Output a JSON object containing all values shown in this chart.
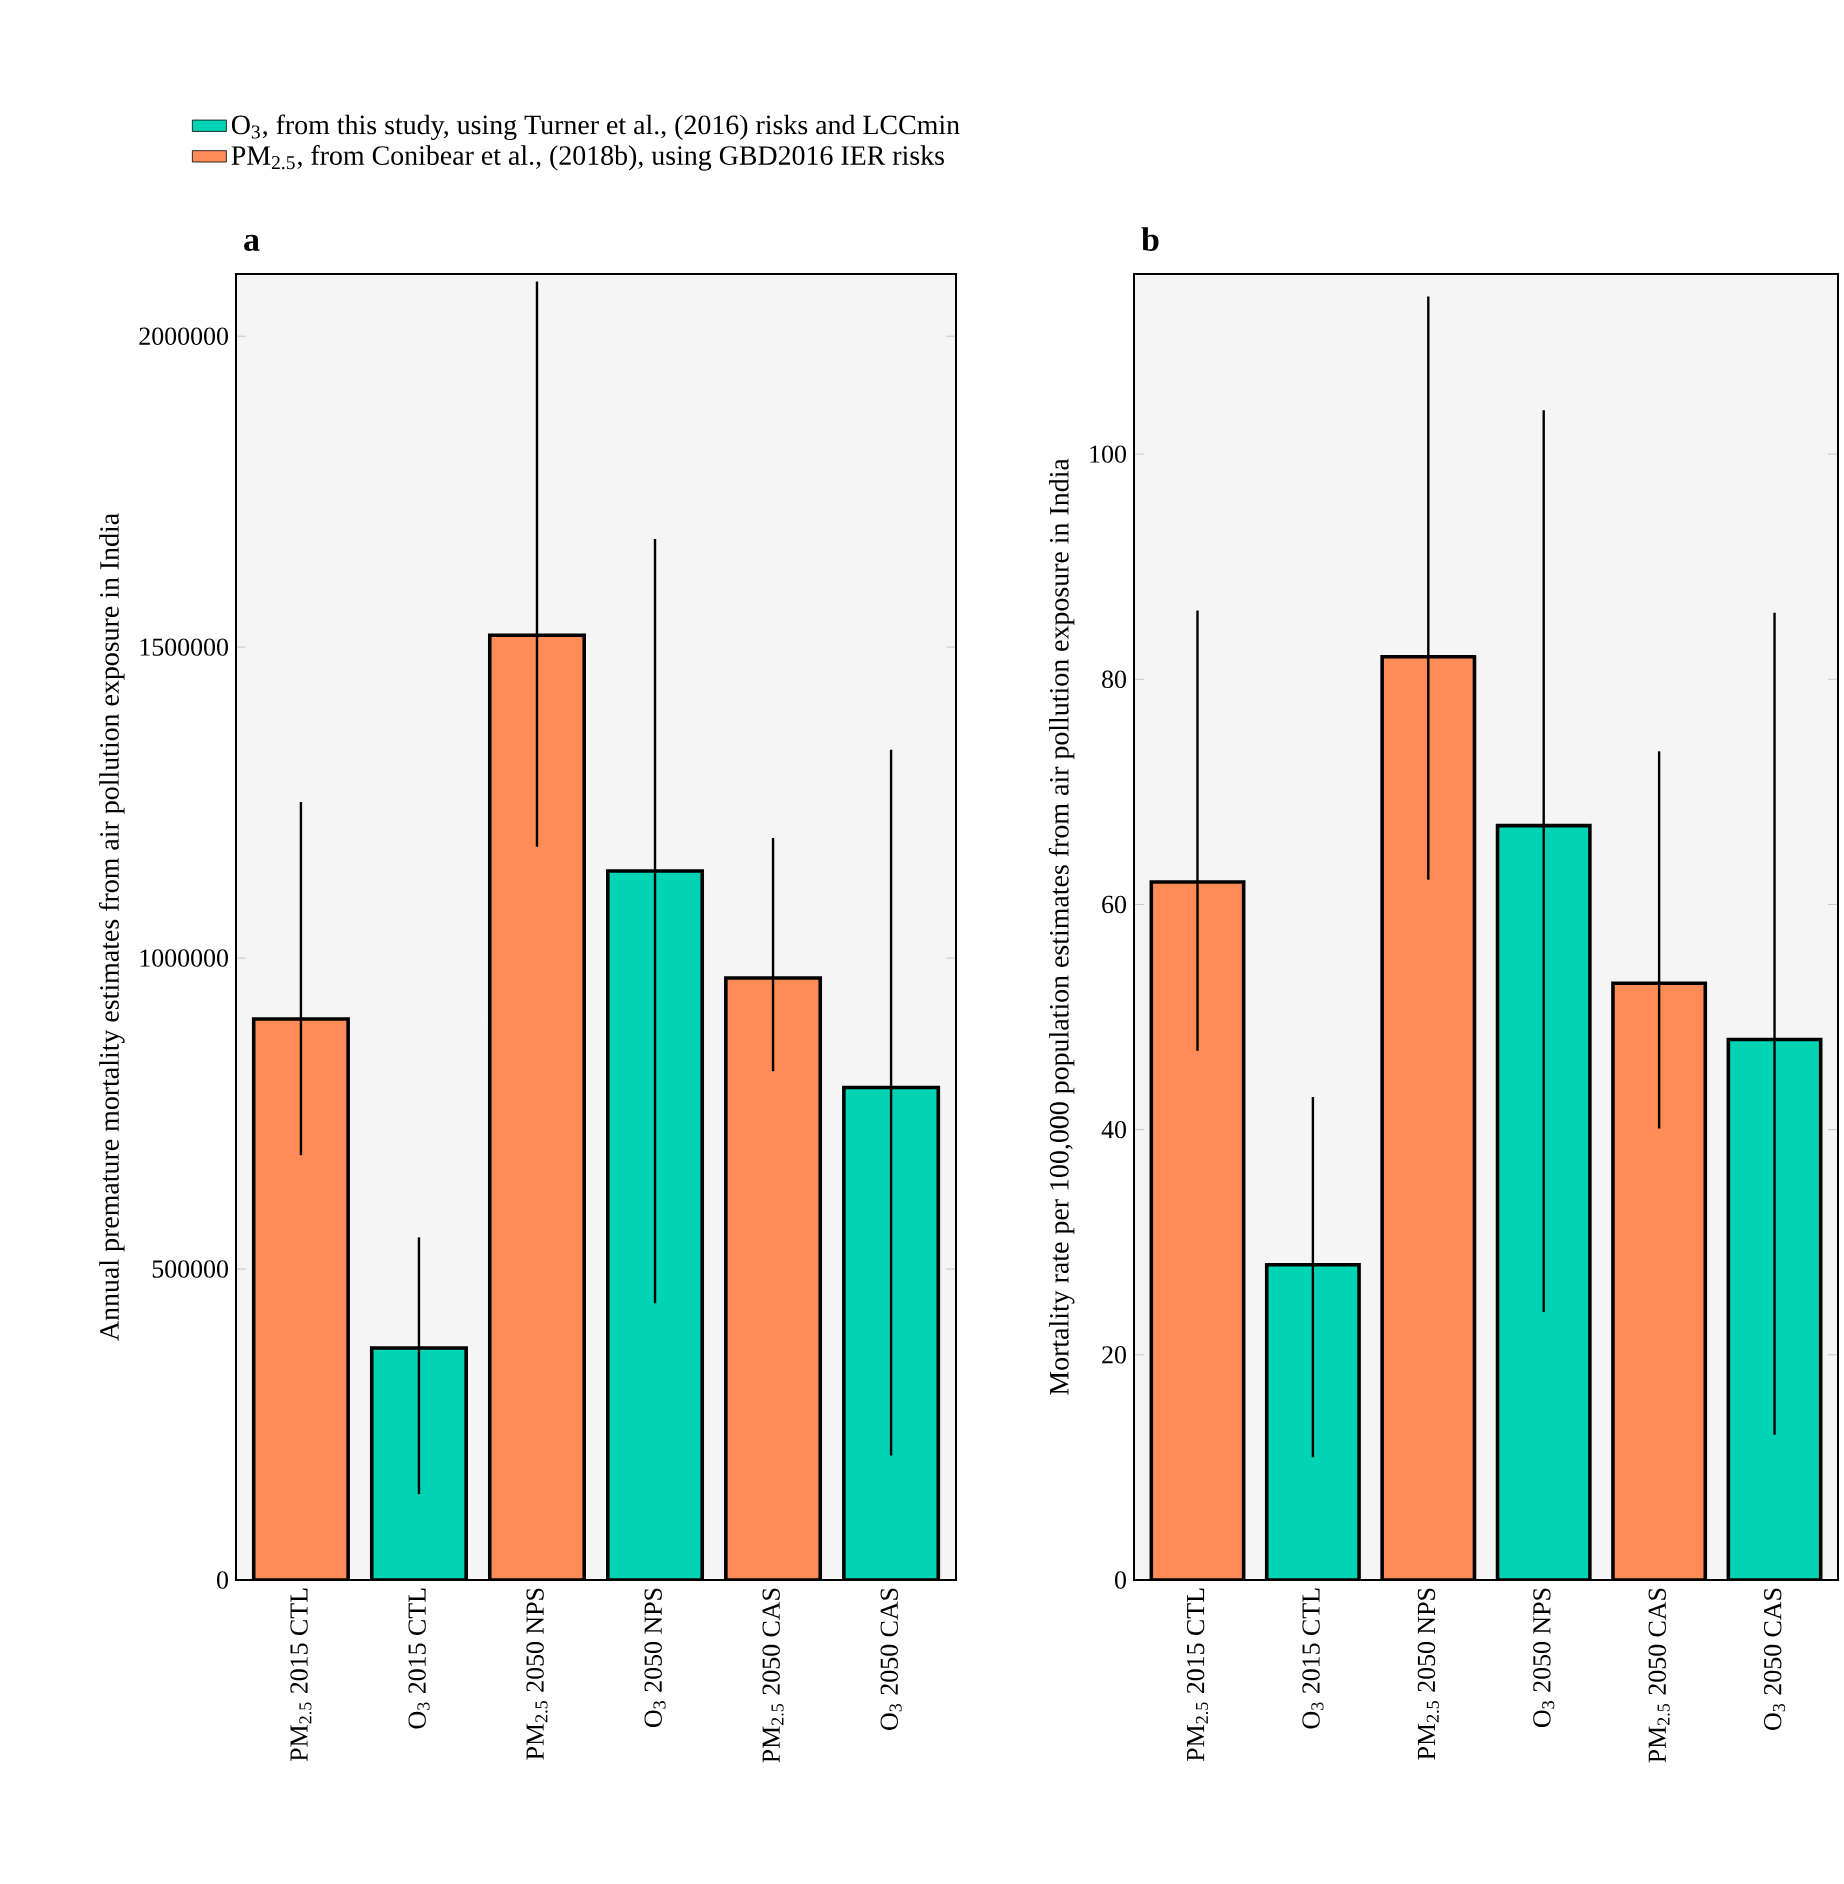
{
  "chart_data": [
    {
      "type": "bar",
      "ylabel": "Annual premature mortality estimates from air pollution exposure in India",
      "title": "a",
      "categories": [
        "PM$_{2.5}$ 2015 CTL",
        "O$_{3}$ 2015 CTL",
        "PM$_{2.5}$ 2050 NPS",
        "O$_{3}$ 2050 NPS",
        "PM$_{2.5}$ 2050 CAS",
        "O$_{3}$ 2050 CAS"
      ],
      "series": [
        {
          "name": "O$_{3}$, from this study, using Turner et al., (2016) risks and LCCmin",
          "color": "#00d4b4",
          "values": [
            null,
            373000,
            null,
            1140000,
            null,
            792000
          ],
          "errors": [
            null,
            [
              138000,
              551000
            ],
            null,
            [
              445000,
              1674000
            ],
            null,
            [
              200000,
              1335000
            ]
          ]
        },
        {
          "name": "PM$_{2.5}$, from Conibear et al., (2018b), using GBD2016 IER risks",
          "color": "#ff8c57",
          "values": [
            902000,
            null,
            1519000,
            null,
            968000,
            null
          ],
          "errors": [
            [
              683000,
              1251000
            ],
            null,
            [
              1179000,
              2088000
            ],
            null,
            [
              818000,
              1193000
            ],
            null
          ]
        }
      ],
      "ylim": [
        0,
        2100000
      ],
      "yticks": [
        0,
        500000,
        1000000,
        1500000,
        2000000
      ],
      "legend": "top",
      "grid": false
    },
    {
      "type": "bar",
      "ylabel": "Mortality rate per 100,000 population estimates from air pollution exposure in India",
      "title": "b",
      "categories": [
        "PM$_{2.5}$ 2015 CTL",
        "O$_{3}$ 2015 CTL",
        "PM$_{2.5}$ 2050 NPS",
        "O$_{3}$ 2050 NPS",
        "PM$_{2.5}$ 2050 CAS",
        "O$_{3}$ 2050 CAS"
      ],
      "series": [
        {
          "color": "#00d4b4",
          "values": [
            null,
            28,
            null,
            67,
            null,
            48
          ],
          "errors": [
            null,
            [
              10.9,
              42.9
            ],
            null,
            [
              23.8,
              103.9
            ],
            null,
            [
              12.9,
              85.9
            ]
          ]
        },
        {
          "color": "#ff8c57",
          "values": [
            62,
            null,
            82,
            null,
            53,
            null
          ],
          "errors": [
            [
              47,
              86.1
            ],
            null,
            [
              62.2,
              114
            ],
            null,
            [
              40.1,
              73.6
            ],
            null
          ]
        }
      ],
      "ylim": [
        0,
        116
      ],
      "yticks": [
        0,
        20,
        40,
        60,
        80,
        100
      ],
      "grid": false
    }
  ]
}
